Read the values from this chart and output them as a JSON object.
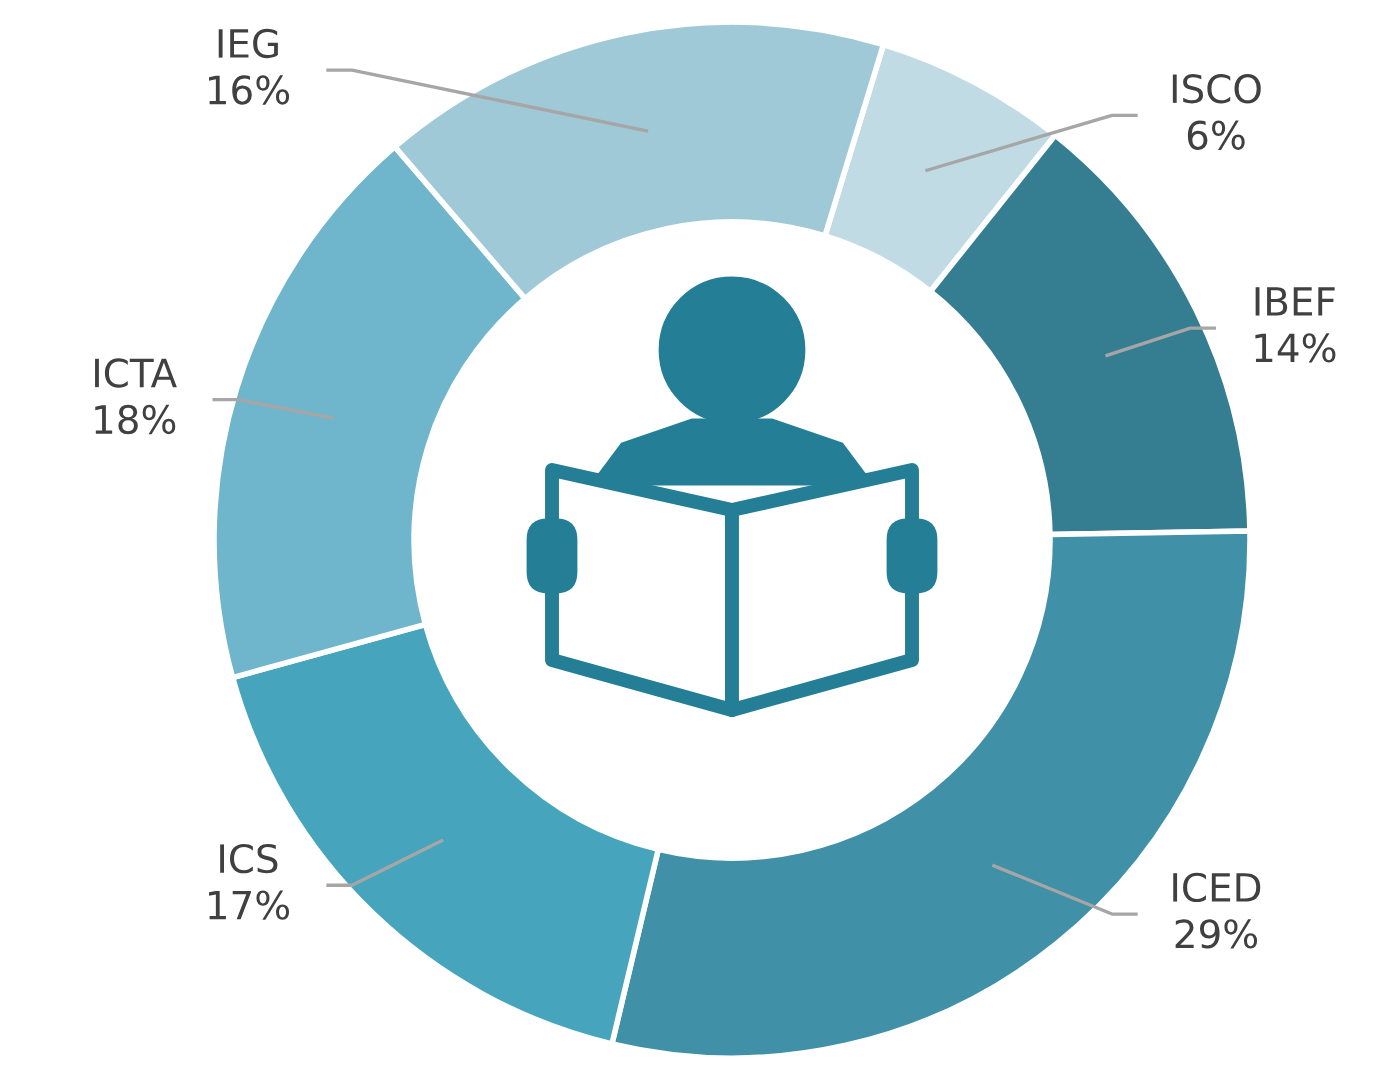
{
  "chart_data": {
    "type": "donut",
    "categories": [
      "ISCO",
      "IBEF",
      "ICED",
      "ICS",
      "ICTA",
      "IEG"
    ],
    "values": [
      6,
      14,
      29,
      17,
      18,
      16
    ],
    "value_labels": [
      "6%",
      "14%",
      "29%",
      "17%",
      "18%",
      "16%"
    ],
    "colors": [
      "#c0dbe4",
      "#357d91",
      "#4090a8",
      "#46a5bc",
      "#6fb5cb",
      "#a0c9d8"
    ]
  }
}
